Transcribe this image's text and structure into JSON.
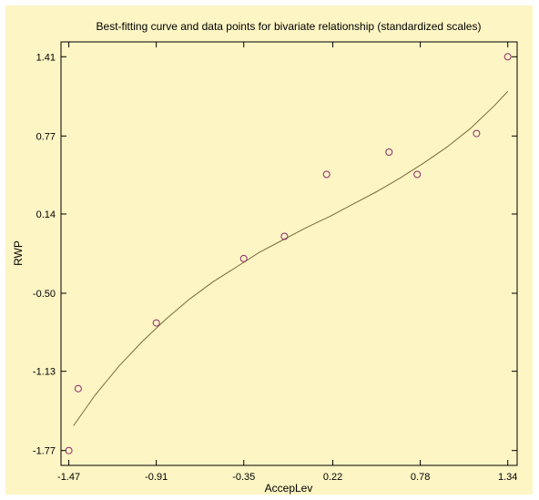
{
  "chart_data": {
    "type": "scatter",
    "title": "Best-fitting curve and data points for bivariate relationship (standardized scales)",
    "xlabel": "AccepLev",
    "ylabel": "RWP",
    "xlim": [
      -1.52,
      1.4
    ],
    "ylim": [
      -1.89,
      1.53
    ],
    "x_ticks": [
      -1.47,
      -0.91,
      -0.35,
      0.22,
      0.78,
      1.34
    ],
    "y_ticks": [
      1.41,
      0.77,
      0.14,
      -0.5,
      -1.13,
      -1.77
    ],
    "x_tick_labels": [
      "-1.47",
      "-0.91",
      "-0.35",
      "0.22",
      "0.78",
      "1.34"
    ],
    "y_tick_labels": [
      "1.41",
      "0.77",
      "0.14",
      "-0.50",
      "-1.13",
      "-1.77"
    ],
    "grid": false,
    "legend": "none",
    "series": [
      {
        "kind": "points",
        "marker": "open-circle",
        "x": [
          -1.47,
          -1.41,
          -0.91,
          -0.35,
          -0.09,
          0.18,
          0.58,
          0.76,
          1.14,
          1.34
        ],
        "y": [
          -1.77,
          -1.27,
          -0.74,
          -0.22,
          -0.04,
          0.46,
          0.64,
          0.46,
          0.79,
          1.41
        ]
      },
      {
        "kind": "fitted-curve",
        "x": [
          -1.44,
          -1.3,
          -1.15,
          -1.0,
          -0.85,
          -0.7,
          -0.55,
          -0.4,
          -0.25,
          -0.1,
          0.05,
          0.2,
          0.35,
          0.5,
          0.65,
          0.8,
          0.95,
          1.1,
          1.25,
          1.34
        ],
        "y": [
          -1.57,
          -1.32,
          -1.09,
          -0.89,
          -0.71,
          -0.55,
          -0.41,
          -0.29,
          -0.17,
          -0.07,
          0.03,
          0.12,
          0.22,
          0.32,
          0.43,
          0.55,
          0.68,
          0.83,
          1.01,
          1.13
        ]
      }
    ],
    "colors": {
      "background": "#fdf5c4",
      "plot_area": "#fdf5c4",
      "curve": "#7a6a3a",
      "marker_edge": "#8a2a6a",
      "axis": "#000000"
    }
  }
}
